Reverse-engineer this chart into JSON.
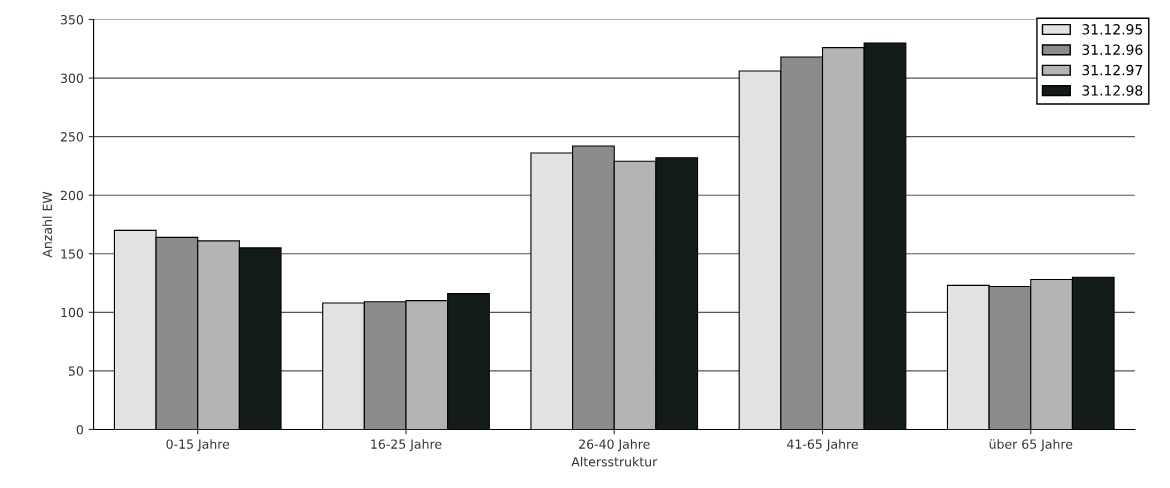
{
  "chart_data": {
    "type": "bar",
    "xlabel": "Altersstruktur",
    "ylabel": "Anzahl EW",
    "categories": [
      "0-15 Jahre",
      "16-25 Jahre",
      "26-40 Jahre",
      "41-65 Jahre",
      "über 65 Jahre"
    ],
    "series": [
      {
        "name": "31.12.95",
        "color": "#e2e2e2",
        "values": [
          170,
          108,
          236,
          306,
          123
        ]
      },
      {
        "name": "31.12.96",
        "color": "#8c8c8c",
        "values": [
          164,
          109,
          242,
          318,
          122
        ]
      },
      {
        "name": "31.12.97",
        "color": "#b4b4b4",
        "values": [
          161,
          110,
          229,
          326,
          128
        ]
      },
      {
        "name": "31.12.98",
        "color": "#141c18",
        "values": [
          155,
          116,
          232,
          330,
          130
        ]
      }
    ],
    "ylim": [
      0,
      350
    ],
    "yticks": [
      0,
      50,
      100,
      150,
      200,
      250,
      300,
      350
    ],
    "grid": "y",
    "legend": "top right"
  }
}
